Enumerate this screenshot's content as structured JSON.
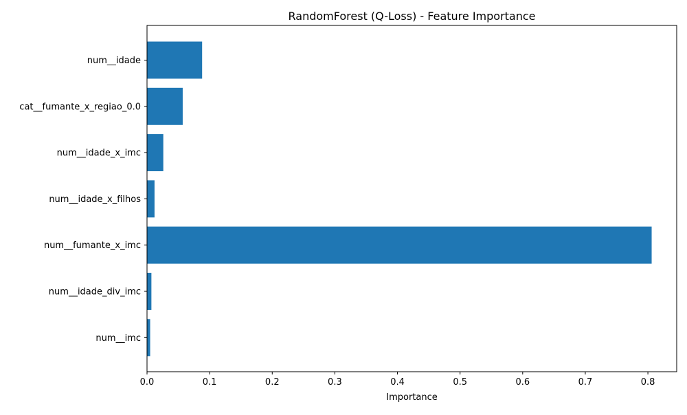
{
  "chart_data": {
    "type": "bar",
    "orientation": "horizontal",
    "title": "RandomForest (Q-Loss) - Feature Importance",
    "xlabel": "Importance",
    "ylabel": "",
    "categories": [
      "num__idade",
      "cat__fumante_x_regiao_0.0",
      "num__idade_x_imc",
      "num__idade_x_filhos",
      "num__fumante_x_imc",
      "num__idade_div_imc",
      "num__imc"
    ],
    "values": [
      0.088,
      0.057,
      0.026,
      0.012,
      0.806,
      0.007,
      0.005
    ],
    "xlim": [
      0,
      0.846
    ],
    "xticks": [
      0.0,
      0.1,
      0.2,
      0.3,
      0.4,
      0.5,
      0.6,
      0.7,
      0.8
    ],
    "xtick_labels": [
      "0.0",
      "0.1",
      "0.2",
      "0.3",
      "0.4",
      "0.5",
      "0.6",
      "0.7",
      "0.8"
    ],
    "grid": false,
    "legend": "none",
    "colors": {
      "bar": "#1f77b4",
      "axis": "#000000",
      "background": "#ffffff"
    }
  }
}
